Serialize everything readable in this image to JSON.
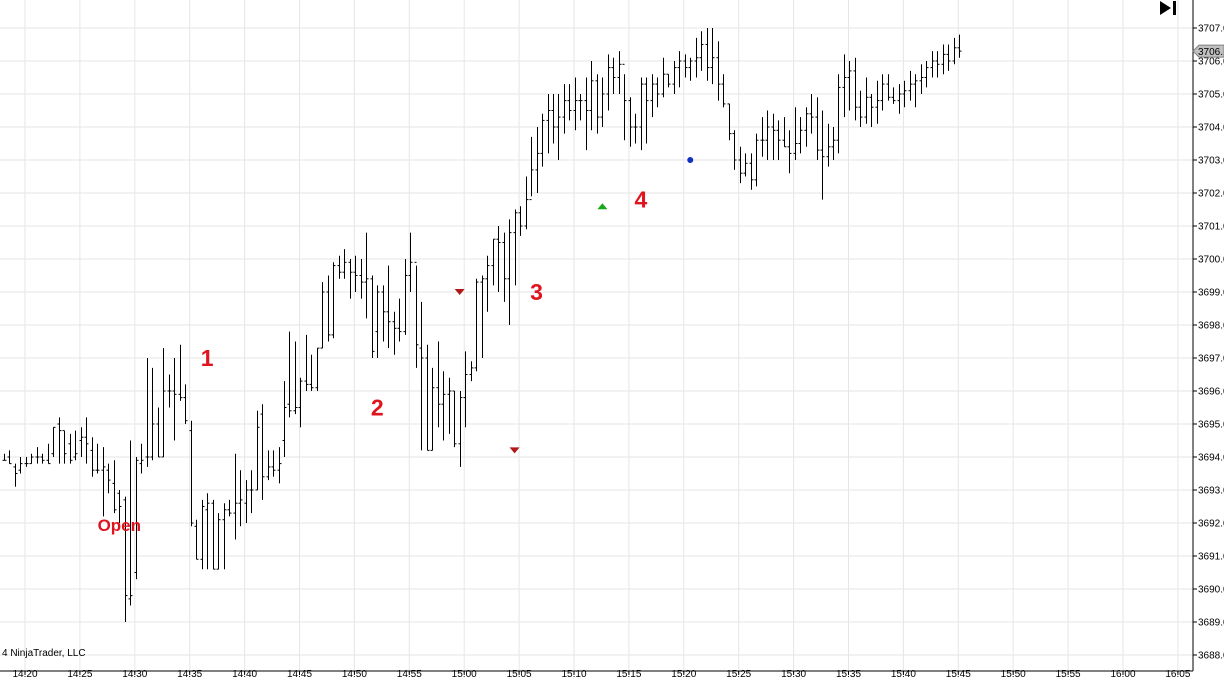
{
  "chart_data": {
    "type": "ohlc",
    "y_ticks": [
      "3688.0",
      "3689.0",
      "3690.0",
      "3691.0",
      "3692.0",
      "3693.0",
      "3694.0",
      "3695.0",
      "3696.0",
      "3697.0",
      "3698.0",
      "3699.0",
      "3700.0",
      "3701.0",
      "3702.0",
      "3703.0",
      "3704.0",
      "3705.0",
      "3706.0",
      "3707.0"
    ],
    "x_ticks": [
      "14:20",
      "14:25",
      "14:30",
      "14:35",
      "14:40",
      "14:45",
      "14:50",
      "14:55",
      "15:00",
      "15:05",
      "15:10",
      "15:15",
      "15:20",
      "15:25",
      "15:30",
      "15:35",
      "15:40",
      "15:45",
      "15:50",
      "15:55",
      "16:00",
      "16:05"
    ],
    "ylim": [
      3688,
      3707.2
    ],
    "grid": true,
    "last_price_label": "3706.",
    "annotations": [
      {
        "text": "Open",
        "time_index": 21,
        "price": 3692.0
      },
      {
        "text": "1",
        "time_index": 37,
        "price": 3697.0
      },
      {
        "text": "2",
        "time_index": 68,
        "price": 3695.5
      },
      {
        "text": "3",
        "time_index": 97,
        "price": 3699.0
      },
      {
        "text": "4",
        "time_index": 116,
        "price": 3701.8
      }
    ],
    "markers": [
      {
        "type": "sell-down-arrow",
        "time_index": 83,
        "price": 3699.0,
        "color": "#b01818"
      },
      {
        "type": "sell-down-arrow",
        "time_index": 93,
        "price": 3694.2,
        "color": "#b01818"
      },
      {
        "type": "buy-up-arrow",
        "time_index": 109,
        "price": 3701.6,
        "color": "#18a818"
      },
      {
        "type": "dot",
        "time_index": 125,
        "price": 3703.0,
        "color": "#1030c0"
      }
    ],
    "bars": [
      [
        3693.9,
        3694.1,
        3693.9,
        3693.9
      ],
      [
        3694.0,
        3694.2,
        3693.8,
        3693.8
      ],
      [
        3693.7,
        3693.8,
        3693.1,
        3693.5
      ],
      [
        3693.6,
        3694.0,
        3693.5,
        3693.8
      ],
      [
        3693.8,
        3694.0,
        3693.7,
        3693.8
      ],
      [
        3693.8,
        3694.1,
        3693.8,
        3694.0
      ],
      [
        3694.0,
        3694.3,
        3693.8,
        3694.0
      ],
      [
        3694.0,
        3694.1,
        3693.8,
        3693.9
      ],
      [
        3693.9,
        3694.4,
        3693.8,
        3693.8
      ],
      [
        3694.1,
        3694.9,
        3694.0,
        3694.9
      ],
      [
        3695.0,
        3695.2,
        3693.8,
        3694.8
      ],
      [
        3694.8,
        3694.8,
        3693.8,
        3694.1
      ],
      [
        3694.4,
        3694.7,
        3693.8,
        3693.9
      ],
      [
        3694.0,
        3694.8,
        3693.9,
        3694.1
      ],
      [
        3694.5,
        3694.9,
        3694.0,
        3694.6
      ],
      [
        3694.6,
        3695.2,
        3693.8,
        3694.4
      ],
      [
        3694.2,
        3694.6,
        3693.4,
        3693.6
      ],
      [
        3693.6,
        3694.4,
        3693.5,
        3693.6
      ],
      [
        3693.6,
        3694.3,
        3692.2,
        3693.7
      ],
      [
        3693.6,
        3693.8,
        3692.9,
        3693.3
      ],
      [
        3693.2,
        3693.9,
        3692.3,
        3692.4
      ],
      [
        3692.9,
        3693.0,
        3692.0,
        3692.5
      ],
      [
        3692.7,
        3692.8,
        3689.0,
        3689.8
      ],
      [
        3689.7,
        3694.5,
        3689.5,
        3689.8
      ],
      [
        3690.5,
        3694.0,
        3690.3,
        3693.9
      ],
      [
        3693.8,
        3694.4,
        3693.5,
        3693.9
      ],
      [
        3694.0,
        3697.0,
        3693.7,
        3694.0
      ],
      [
        3694.0,
        3696.7,
        3693.9,
        3695.0
      ],
      [
        3695.0,
        3695.5,
        3694.0,
        3694.0
      ],
      [
        3694.0,
        3697.3,
        3694.0,
        3696.0
      ],
      [
        3696.0,
        3696.5,
        3695.5,
        3696.0
      ],
      [
        3696.0,
        3697.0,
        3694.5,
        3695.9
      ],
      [
        3695.9,
        3697.4,
        3695.7,
        3695.8
      ],
      [
        3695.8,
        3696.2,
        3695.0,
        3695.1
      ],
      [
        3694.8,
        3695.1,
        3691.9,
        3692.0
      ],
      [
        3691.9,
        3692.1,
        3690.9,
        3690.9
      ],
      [
        3690.9,
        3692.7,
        3690.6,
        3692.5
      ],
      [
        3692.4,
        3692.9,
        3690.6,
        3692.6
      ],
      [
        3692.6,
        3692.7,
        3690.6,
        3690.6
      ],
      [
        3690.6,
        3692.3,
        3690.6,
        3692.1
      ],
      [
        3692.1,
        3692.6,
        3690.6,
        3692.4
      ],
      [
        3692.4,
        3692.7,
        3692.2,
        3692.3
      ],
      [
        3692.3,
        3694.1,
        3691.5,
        3692.6
      ],
      [
        3692.6,
        3693.6,
        3691.9,
        3692.7
      ],
      [
        3692.6,
        3693.3,
        3692.0,
        3693.0
      ],
      [
        3693.0,
        3693.6,
        3692.3,
        3693.0
      ],
      [
        3693.0,
        3695.4,
        3693.0,
        3694.9
      ],
      [
        3695.3,
        3695.6,
        3692.7,
        3693.4
      ],
      [
        3693.4,
        3694.2,
        3693.3,
        3693.7
      ],
      [
        3693.7,
        3694.2,
        3693.4,
        3693.6
      ],
      [
        3693.6,
        3694.3,
        3693.2,
        3693.8
      ],
      [
        3694.5,
        3696.3,
        3694.0,
        3695.5
      ],
      [
        3695.6,
        3697.8,
        3695.2,
        3695.4
      ],
      [
        3695.4,
        3697.5,
        3695.3,
        3695.5
      ],
      [
        3695.5,
        3696.4,
        3694.9,
        3696.3
      ],
      [
        3696.3,
        3697.7,
        3696.0,
        3696.2
      ],
      [
        3696.2,
        3697.1,
        3696.0,
        3696.1
      ],
      [
        3696.1,
        3697.3,
        3696.0,
        3697.3
      ],
      [
        3697.3,
        3699.3,
        3697.3,
        3699.0
      ],
      [
        3699.0,
        3699.5,
        3697.5,
        3697.7
      ],
      [
        3697.7,
        3699.9,
        3697.6,
        3699.8
      ],
      [
        3699.8,
        3700.1,
        3699.4,
        3699.6
      ],
      [
        3699.6,
        3700.3,
        3699.4,
        3699.9
      ],
      [
        3699.9,
        3700.0,
        3698.8,
        3699.6
      ],
      [
        3699.6,
        3700.1,
        3699.0,
        3699.5
      ],
      [
        3699.5,
        3700.0,
        3698.8,
        3699.3
      ],
      [
        3699.3,
        3700.8,
        3698.2,
        3699.4
      ],
      [
        3699.4,
        3699.5,
        3697.0,
        3697.2
      ],
      [
        3697.8,
        3699.2,
        3697.0,
        3699.0
      ],
      [
        3699.0,
        3699.2,
        3697.5,
        3698.4
      ],
      [
        3698.4,
        3699.8,
        3697.3,
        3698.1
      ],
      [
        3698.1,
        3698.4,
        3697.1,
        3697.9
      ],
      [
        3697.9,
        3698.8,
        3697.5,
        3697.8
      ],
      [
        3697.8,
        3700.0,
        3697.7,
        3699.5
      ],
      [
        3699.5,
        3700.8,
        3699.0,
        3699.9
      ],
      [
        3699.9,
        3699.8,
        3696.7,
        3697.4
      ],
      [
        3697.3,
        3698.7,
        3694.2,
        3697.0
      ],
      [
        3697.0,
        3697.4,
        3694.2,
        3694.2
      ],
      [
        3694.2,
        3696.7,
        3694.2,
        3696.1
      ],
      [
        3696.1,
        3697.5,
        3694.9,
        3695.6
      ],
      [
        3695.6,
        3696.6,
        3694.5,
        3695.9
      ],
      [
        3695.9,
        3696.4,
        3694.7,
        3696.0
      ],
      [
        3696.0,
        3696.0,
        3694.3,
        3694.4
      ],
      [
        3694.4,
        3696.0,
        3693.7,
        3695.8
      ],
      [
        3695.8,
        3697.2,
        3694.9,
        3696.5
      ],
      [
        3696.5,
        3696.9,
        3696.3,
        3696.7
      ],
      [
        3696.7,
        3699.4,
        3696.6,
        3699.3
      ],
      [
        3699.3,
        3699.5,
        3697.0,
        3699.4
      ],
      [
        3699.4,
        3700.1,
        3698.4,
        3699.8
      ],
      [
        3699.8,
        3700.6,
        3699.2,
        3700.6
      ],
      [
        3700.6,
        3701.0,
        3699.0,
        3700.5
      ],
      [
        3700.5,
        3700.8,
        3698.7,
        3699.4
      ],
      [
        3699.4,
        3701.2,
        3698.0,
        3700.8
      ],
      [
        3700.8,
        3701.5,
        3699.2,
        3701.4
      ],
      [
        3701.4,
        3701.6,
        3700.7,
        3701.0
      ],
      [
        3701.0,
        3702.5,
        3700.9,
        3701.8
      ],
      [
        3701.8,
        3703.7,
        3701.9,
        3702.7
      ],
      [
        3702.7,
        3704.0,
        3702.0,
        3703.2
      ],
      [
        3703.2,
        3704.4,
        3702.8,
        3704.2
      ],
      [
        3704.2,
        3705.0,
        3703.2,
        3704.5
      ],
      [
        3704.5,
        3705.0,
        3703.5,
        3704.0
      ],
      [
        3704.0,
        3705.0,
        3703.0,
        3704.3
      ],
      [
        3704.3,
        3705.3,
        3703.8,
        3704.8
      ],
      [
        3704.8,
        3705.3,
        3704.2,
        3704.5
      ],
      [
        3704.5,
        3705.5,
        3703.9,
        3704.8
      ],
      [
        3704.8,
        3705.0,
        3704.2,
        3704.8
      ],
      [
        3704.8,
        3705.5,
        3703.3,
        3704.5
      ],
      [
        3704.5,
        3706.0,
        3703.9,
        3705.4
      ],
      [
        3705.4,
        3705.6,
        3703.8,
        3704.3
      ],
      [
        3704.3,
        3705.5,
        3704.0,
        3705.0
      ],
      [
        3705.0,
        3706.2,
        3704.5,
        3705.8
      ],
      [
        3705.8,
        3706.1,
        3705.0,
        3705.5
      ],
      [
        3705.5,
        3706.3,
        3705.0,
        3705.9
      ],
      [
        3705.9,
        3705.6,
        3703.6,
        3704.8
      ],
      [
        3704.8,
        3704.9,
        3703.4,
        3704.0
      ],
      [
        3704.0,
        3704.4,
        3703.5,
        3704.0
      ],
      [
        3704.0,
        3705.5,
        3703.3,
        3705.3
      ],
      [
        3705.3,
        3705.5,
        3703.5,
        3704.8
      ],
      [
        3704.8,
        3705.6,
        3704.3,
        3705.3
      ],
      [
        3705.3,
        3705.5,
        3704.6,
        3705.0
      ],
      [
        3705.0,
        3706.1,
        3704.9,
        3705.6
      ],
      [
        3705.6,
        3705.6,
        3705.2,
        3705.3
      ],
      [
        3705.3,
        3706.0,
        3705.0,
        3705.8
      ],
      [
        3705.8,
        3706.3,
        3705.2,
        3706.0
      ],
      [
        3706.0,
        3706.2,
        3705.5,
        3705.8
      ],
      [
        3705.8,
        3706.1,
        3705.4,
        3706.0
      ],
      [
        3706.0,
        3706.7,
        3705.5,
        3706.1
      ],
      [
        3706.1,
        3706.9,
        3705.7,
        3706.5
      ],
      [
        3706.5,
        3707.0,
        3705.4,
        3705.8
      ],
      [
        3705.8,
        3707.0,
        3705.3,
        3706.1
      ],
      [
        3706.1,
        3706.6,
        3704.8,
        3705.3
      ],
      [
        3705.3,
        3705.6,
        3704.6,
        3704.7
      ],
      [
        3704.7,
        3704.7,
        3703.6,
        3703.8
      ],
      [
        3703.8,
        3703.9,
        3702.7,
        3703.0
      ],
      [
        3703.0,
        3703.4,
        3702.3,
        3702.6
      ],
      [
        3702.6,
        3703.2,
        3702.5,
        3702.9
      ],
      [
        3702.9,
        3703.2,
        3702.1,
        3702.4
      ],
      [
        3702.4,
        3703.8,
        3702.2,
        3703.6
      ],
      [
        3703.6,
        3704.3,
        3703.1,
        3703.6
      ],
      [
        3703.6,
        3704.5,
        3703.0,
        3704.0
      ],
      [
        3704.0,
        3704.4,
        3703.0,
        3703.9
      ],
      [
        3703.9,
        3704.2,
        3703.0,
        3703.6
      ],
      [
        3703.6,
        3704.3,
        3703.4,
        3703.4
      ],
      [
        3703.4,
        3703.9,
        3702.6,
        3703.2
      ],
      [
        3703.2,
        3704.6,
        3703.0,
        3703.5
      ],
      [
        3703.5,
        3704.3,
        3703.2,
        3703.9
      ],
      [
        3703.9,
        3704.6,
        3703.4,
        3704.4
      ],
      [
        3704.4,
        3705.0,
        3703.8,
        3704.3
      ],
      [
        3704.3,
        3704.9,
        3703.0,
        3703.3
      ],
      [
        3703.3,
        3704.5,
        3701.8,
        3703.1
      ],
      [
        3703.1,
        3704.1,
        3702.8,
        3703.4
      ],
      [
        3703.4,
        3704.0,
        3703.0,
        3703.6
      ],
      [
        3703.6,
        3705.6,
        3703.2,
        3705.2
      ],
      [
        3705.2,
        3706.2,
        3704.3,
        3705.5
      ],
      [
        3705.5,
        3706.0,
        3704.5,
        3705.7
      ],
      [
        3705.7,
        3706.1,
        3704.2,
        3704.6
      ],
      [
        3704.6,
        3705.1,
        3704.0,
        3704.3
      ],
      [
        3704.3,
        3705.5,
        3704.1,
        3704.9
      ],
      [
        3704.9,
        3705.0,
        3704.0,
        3704.6
      ],
      [
        3704.6,
        3705.4,
        3704.1,
        3704.8
      ],
      [
        3704.8,
        3705.6,
        3704.5,
        3705.3
      ],
      [
        3705.3,
        3705.6,
        3704.8,
        3704.9
      ],
      [
        3704.9,
        3705.2,
        3704.7,
        3704.8
      ],
      [
        3704.8,
        3705.3,
        3704.4,
        3705.0
      ],
      [
        3705.0,
        3705.4,
        3704.6,
        3705.1
      ],
      [
        3705.1,
        3705.7,
        3704.8,
        3705.3
      ],
      [
        3705.3,
        3705.6,
        3704.6,
        3705.4
      ],
      [
        3705.4,
        3705.9,
        3705.0,
        3705.5
      ],
      [
        3705.5,
        3706.0,
        3705.2,
        3705.8
      ],
      [
        3705.8,
        3706.3,
        3705.5,
        3706.0
      ],
      [
        3706.0,
        3706.3,
        3705.5,
        3705.9
      ],
      [
        3705.9,
        3706.5,
        3705.6,
        3706.2
      ],
      [
        3706.2,
        3706.5,
        3705.7,
        3706.0
      ],
      [
        3706.0,
        3706.7,
        3705.9,
        3706.4
      ],
      [
        3706.4,
        3706.8,
        3706.1,
        3706.3
      ]
    ]
  },
  "copyright": "4 NinjaTrader, LLC"
}
